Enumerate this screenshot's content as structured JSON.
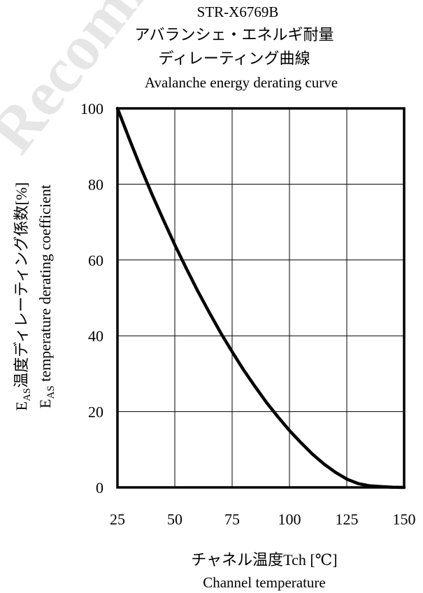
{
  "watermark": "Recommend",
  "chart_data": {
    "type": "line",
    "title_lines": [
      "STR-X6769B",
      "アバランシェ・エネルギ耐量",
      "ディレーティング曲線",
      "Avalanche energy derating curve"
    ],
    "xlabel_lines": [
      "チャネル温度Tch [℃]",
      "Channel temperature"
    ],
    "ylabel_lines": [
      {
        "sub_base": "E",
        "sub": "AS",
        "text": "温度ディレーティング係数[%]"
      },
      {
        "sub_base": "E",
        "sub": "AS",
        "text": " temperature derating coefficient"
      }
    ],
    "xlim": [
      25,
      150
    ],
    "ylim": [
      0,
      100
    ],
    "x_ticks": [
      25,
      50,
      75,
      100,
      125,
      150
    ],
    "y_ticks": [
      0,
      20,
      40,
      60,
      80,
      100
    ],
    "grid": true,
    "series": [
      {
        "x": [
          25,
          30,
          35,
          40,
          45,
          50,
          55,
          60,
          65,
          70,
          75,
          80,
          85,
          90,
          95,
          100,
          105,
          110,
          115,
          120,
          125,
          130,
          135,
          140,
          145,
          150
        ],
        "y": [
          100,
          92.2,
          84.6,
          77.4,
          70.6,
          64.0,
          57.8,
          51.8,
          46.2,
          40.8,
          35.8,
          31.0,
          26.6,
          22.4,
          18.6,
          15.0,
          11.8,
          8.8,
          6.2,
          4.0,
          2.2,
          1.0,
          0.4,
          0.2,
          0.05,
          0
        ]
      }
    ]
  }
}
